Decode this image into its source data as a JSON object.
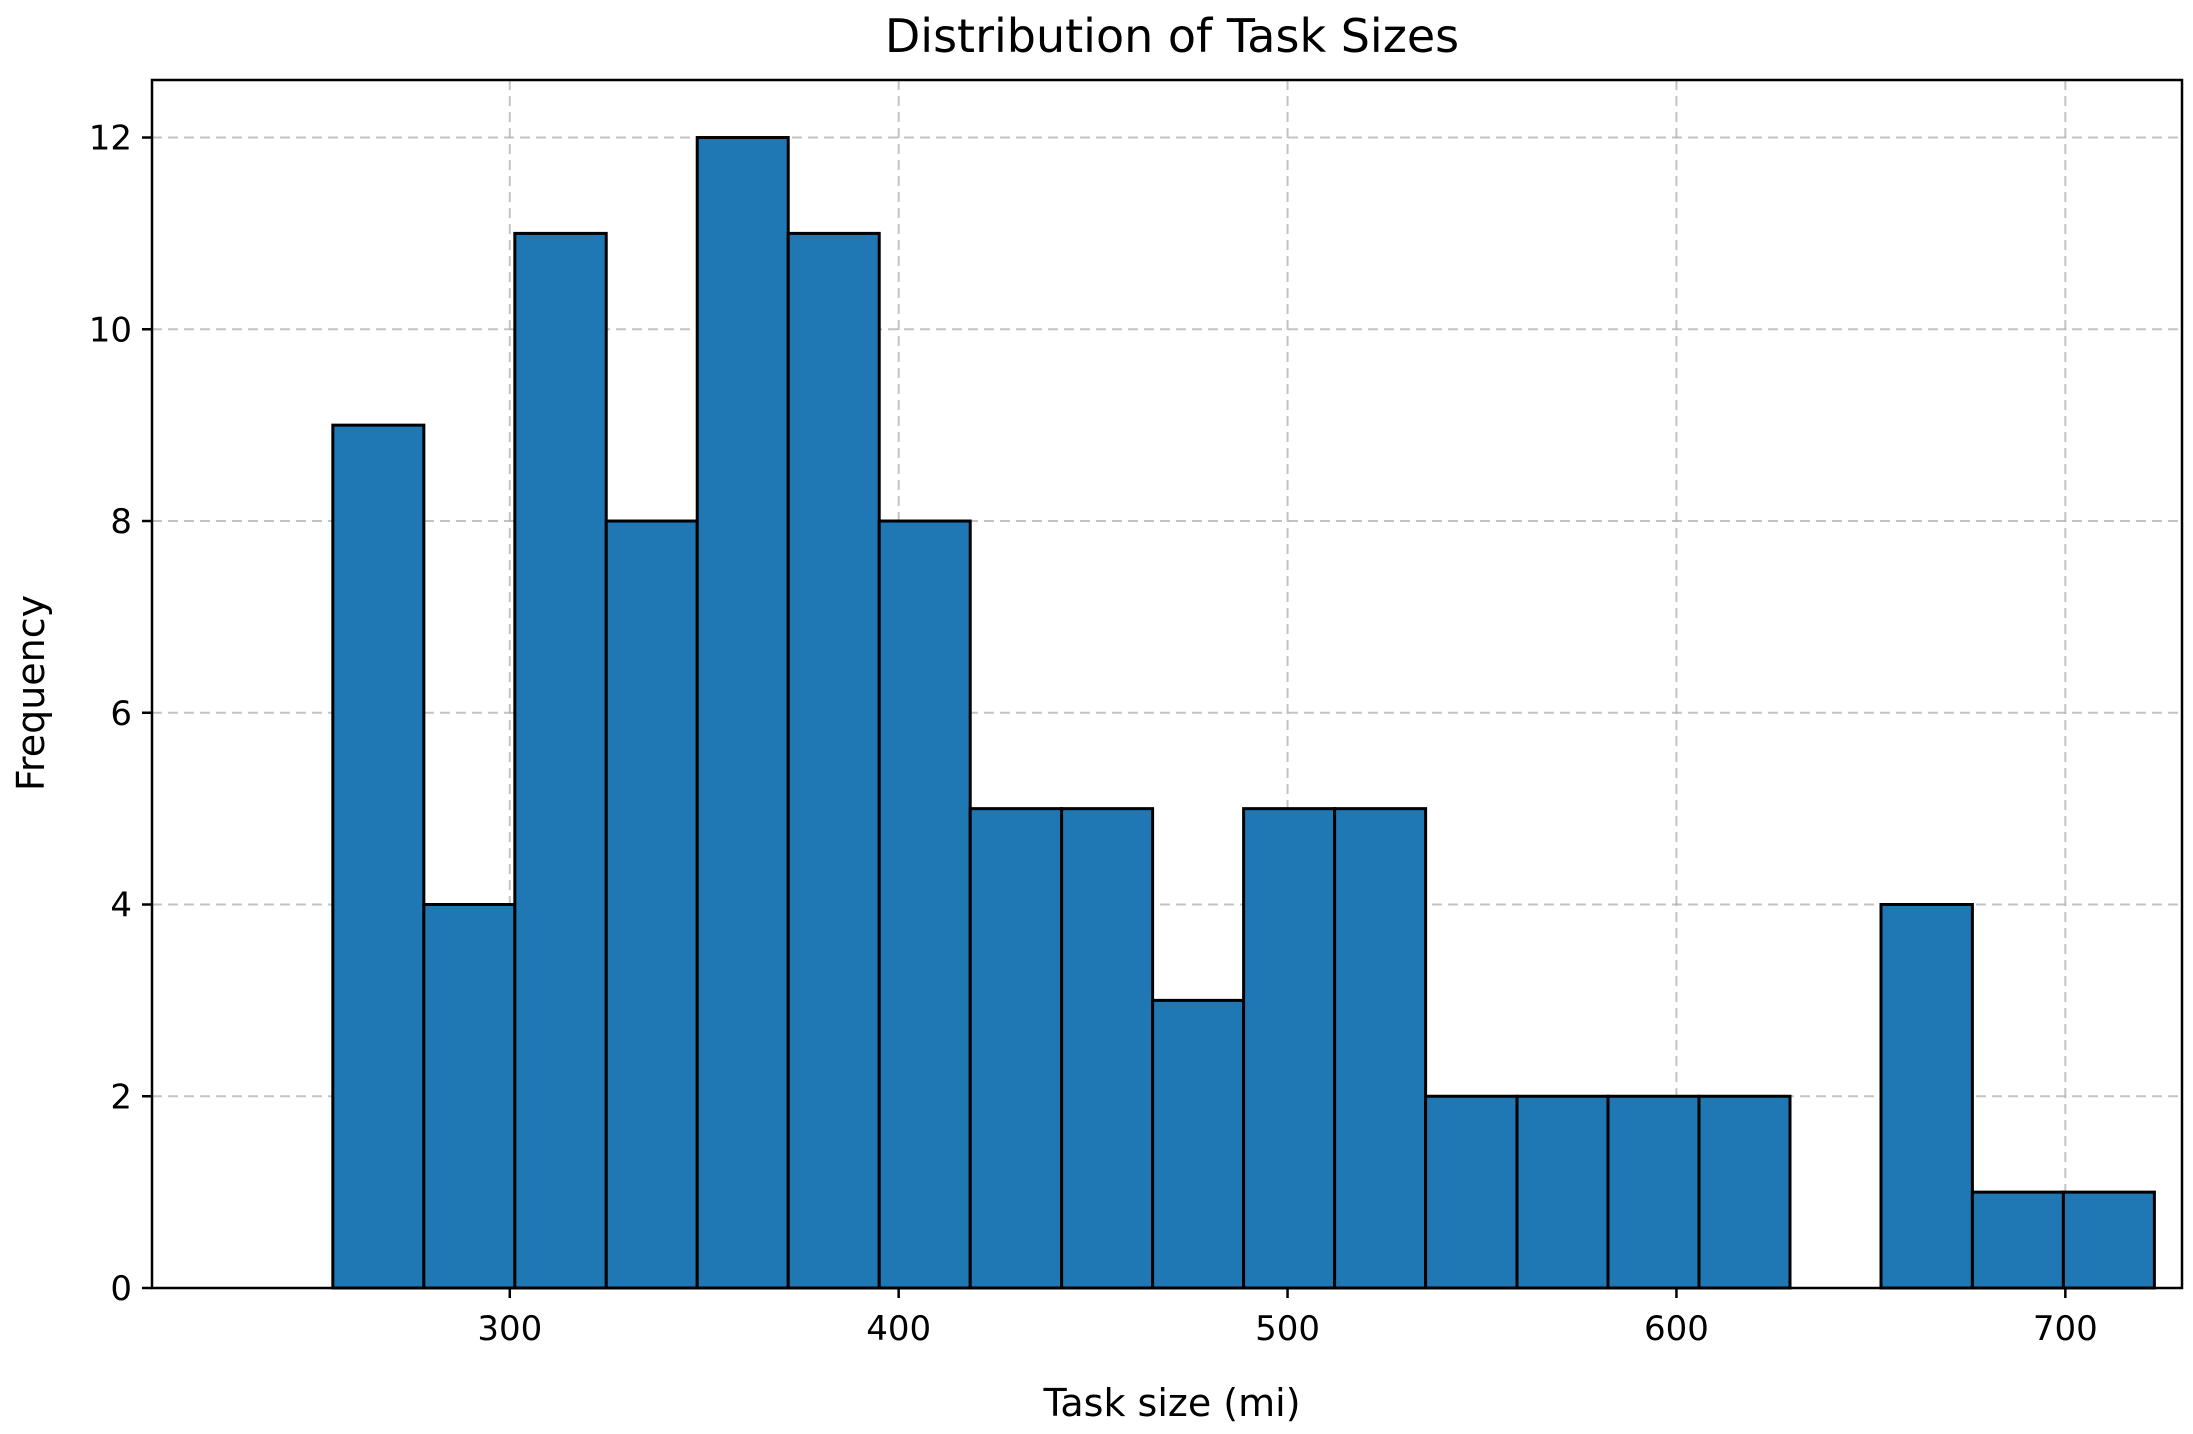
{
  "chart_data": {
    "type": "bar",
    "title": "Distribution of Task Sizes",
    "xlabel": "Task size (mi)",
    "ylabel": "Frequency",
    "bin_edges": [
      254.5,
      277.9,
      301.3,
      324.8,
      348.2,
      371.6,
      395.0,
      418.4,
      441.9,
      465.3,
      488.7,
      512.1,
      535.5,
      559.0,
      582.4,
      605.8,
      629.2,
      652.6,
      676.1,
      699.5,
      722.9
    ],
    "values": [
      9,
      4,
      11,
      8,
      12,
      11,
      8,
      5,
      5,
      3,
      5,
      5,
      2,
      2,
      2,
      2,
      0,
      4,
      1,
      1
    ],
    "xlim": [
      208,
      730
    ],
    "ylim": [
      0,
      12.6
    ],
    "xticks": [
      300,
      400,
      500,
      600,
      700
    ],
    "yticks": [
      0,
      2,
      4,
      6,
      8,
      10,
      12
    ],
    "grid": true,
    "bar_color": "#1f77b4",
    "edge_color": "#000000"
  }
}
